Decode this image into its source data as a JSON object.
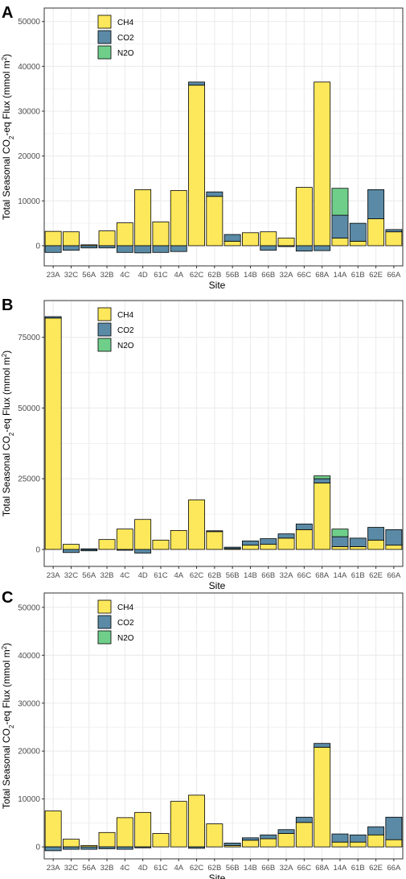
{
  "colors": {
    "CH4": "#fde85b",
    "CO2": "#5a8aa6",
    "N2O": "#6fcf8a",
    "outline": "#000000",
    "panel_border": "#333333",
    "grid": "#ebebeb",
    "tick_text": "#4d4d4d"
  },
  "chart_data": [
    {
      "type": "bar",
      "panel_label": "A",
      "xlabel": "Site",
      "ylabel_main": "Total Seasonal CO",
      "ylabel_sub": "2",
      "ylabel_tail": "-eq Flux (mmol m",
      "ylabel_sup": "2",
      "ylabel_end": ")",
      "ylim": [
        -4500,
        53000
      ],
      "yticks": [
        0,
        10000,
        20000,
        30000,
        40000,
        50000
      ],
      "legend": [
        "CH4",
        "CO2",
        "N2O"
      ],
      "legend_position": "top-left",
      "categories": [
        "23A",
        "32C",
        "56A",
        "32B",
        "4C",
        "4D",
        "61C",
        "4A",
        "62C",
        "62B",
        "56B",
        "14B",
        "66B",
        "32A",
        "66C",
        "68A",
        "14A",
        "61B",
        "62E",
        "66A"
      ],
      "series": [
        {
          "name": "CH4",
          "values": [
            3200,
            3100,
            200,
            3300,
            5100,
            12500,
            5300,
            12300,
            35800,
            11000,
            1000,
            2900,
            3100,
            1700,
            13000,
            36500,
            1700,
            1000,
            6000,
            3100
          ]
        },
        {
          "name": "CO2",
          "values": [
            -1500,
            -1000,
            -500,
            -500,
            -1500,
            -1600,
            -1500,
            -1300,
            700,
            1000,
            1500,
            0,
            -1000,
            -200,
            -1200,
            -1100,
            5100,
            4000,
            6500,
            500
          ]
        },
        {
          "name": "N2O",
          "values": [
            0,
            0,
            0,
            0,
            0,
            0,
            0,
            0,
            0,
            0,
            0,
            0,
            0,
            0,
            0,
            0,
            6000,
            0,
            0,
            0
          ]
        }
      ]
    },
    {
      "type": "bar",
      "panel_label": "B",
      "xlabel": "Site",
      "ylabel_main": "Total Seasonal CO",
      "ylabel_sub": "2",
      "ylabel_tail": "-eq Flux (mmol m",
      "ylabel_sup": "2",
      "ylabel_end": ")",
      "ylim": [
        -6000,
        88000
      ],
      "yticks": [
        0,
        25000,
        50000,
        75000
      ],
      "legend": [
        "CH4",
        "CO2",
        "N2O"
      ],
      "legend_position": "top-left",
      "categories": [
        "23A",
        "32C",
        "56A",
        "32B",
        "4C",
        "4D",
        "61C",
        "4A",
        "62C",
        "62B",
        "56B",
        "14B",
        "66B",
        "32A",
        "66C",
        "68A",
        "14A",
        "61B",
        "62E",
        "66A"
      ],
      "series": [
        {
          "name": "CH4",
          "values": [
            81800,
            1800,
            200,
            3500,
            7200,
            10600,
            3300,
            6700,
            17500,
            6300,
            300,
            1500,
            1800,
            4000,
            7000,
            23500,
            1000,
            1000,
            3300,
            1500
          ]
        },
        {
          "name": "CO2",
          "values": [
            500,
            -1100,
            -500,
            0,
            -300,
            -1300,
            0,
            0,
            0,
            300,
            500,
            1500,
            2000,
            1500,
            2000,
            1500,
            3500,
            3000,
            4500,
            5500
          ]
        },
        {
          "name": "N2O",
          "values": [
            0,
            0,
            0,
            0,
            0,
            0,
            0,
            0,
            0,
            0,
            0,
            0,
            0,
            0,
            0,
            1000,
            2700,
            0,
            0,
            0
          ]
        }
      ]
    },
    {
      "type": "bar",
      "panel_label": "C",
      "xlabel": "Site",
      "ylabel_main": "Total Seasonal CO",
      "ylabel_sub": "2",
      "ylabel_tail": "-eq Flux (mmol m",
      "ylabel_sup": "2",
      "ylabel_end": ")",
      "ylim": [
        -2500,
        53000
      ],
      "yticks": [
        0,
        10000,
        20000,
        30000,
        40000,
        50000
      ],
      "legend": [
        "CH4",
        "CO2",
        "N2O"
      ],
      "legend_position": "top-left",
      "categories": [
        "23A",
        "32C",
        "56A",
        "32B",
        "4C",
        "4D",
        "61C",
        "4A",
        "62C",
        "62B",
        "56B",
        "14B",
        "66B",
        "32A",
        "66C",
        "68A",
        "14A",
        "61B",
        "62E",
        "66A"
      ],
      "series": [
        {
          "name": "CH4",
          "values": [
            7500,
            1600,
            300,
            3000,
            6100,
            7200,
            2800,
            9500,
            10800,
            4800,
            300,
            1400,
            1700,
            2800,
            5100,
            20800,
            1000,
            1000,
            2500,
            1500
          ]
        },
        {
          "name": "CO2",
          "values": [
            -800,
            -500,
            -500,
            -400,
            -500,
            -200,
            0,
            0,
            -300,
            0,
            500,
            500,
            800,
            800,
            1100,
            800,
            1700,
            1500,
            1700,
            4700
          ]
        },
        {
          "name": "N2O",
          "values": [
            0,
            0,
            0,
            0,
            0,
            0,
            0,
            0,
            0,
            0,
            0,
            0,
            0,
            0,
            0,
            0,
            0,
            0,
            0,
            0
          ]
        }
      ]
    }
  ]
}
